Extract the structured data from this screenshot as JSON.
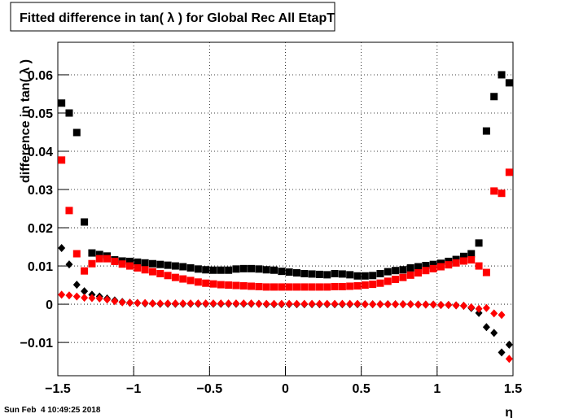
{
  "chart_data": {
    "type": "scatter",
    "title": "Fitted difference in tan( λ ) for Global Rec All EtapT",
    "y_label": "difference in tan( λ )",
    "x_label": "η",
    "timestamp": "Sun Feb  4 10:49:25 2018",
    "x": [
      -1.475,
      -1.425,
      -1.375,
      -1.325,
      -1.275,
      -1.225,
      -1.175,
      -1.125,
      -1.075,
      -1.025,
      -0.975,
      -0.925,
      -0.875,
      -0.825,
      -0.775,
      -0.725,
      -0.675,
      -0.625,
      -0.575,
      -0.525,
      -0.475,
      -0.425,
      -0.375,
      -0.325,
      -0.275,
      -0.225,
      -0.175,
      -0.125,
      -0.075,
      -0.025,
      0.025,
      0.075,
      0.125,
      0.175,
      0.225,
      0.275,
      0.325,
      0.375,
      0.425,
      0.475,
      0.525,
      0.575,
      0.625,
      0.675,
      0.725,
      0.775,
      0.825,
      0.875,
      0.925,
      0.975,
      1.025,
      1.075,
      1.125,
      1.175,
      1.225,
      1.275,
      1.325,
      1.375,
      1.425,
      1.475
    ],
    "series": [
      {
        "color": "#000000",
        "marker": "square",
        "values": [
          0.0526,
          0.05,
          0.0449,
          0.0215,
          0.0134,
          0.013,
          0.0126,
          0.0116,
          0.0113,
          0.0112,
          0.011,
          0.0108,
          0.0106,
          0.0104,
          0.0102,
          0.01,
          0.0098,
          0.0095,
          0.0092,
          0.009,
          0.0089,
          0.0089,
          0.0089,
          0.0092,
          0.0093,
          0.0093,
          0.0092,
          0.009,
          0.0089,
          0.0086,
          0.0084,
          0.0082,
          0.008,
          0.0079,
          0.0078,
          0.0077,
          0.008,
          0.0079,
          0.0077,
          0.0074,
          0.0074,
          0.0075,
          0.008,
          0.0085,
          0.0088,
          0.009,
          0.0095,
          0.0098,
          0.0101,
          0.0104,
          0.0107,
          0.0112,
          0.0117,
          0.0125,
          0.0132,
          0.016,
          0.0453,
          0.0543,
          0.06,
          0.0579
        ]
      },
      {
        "color": "#ff0000",
        "marker": "square",
        "values": [
          0.0377,
          0.0245,
          0.0132,
          0.0087,
          0.0106,
          0.0119,
          0.0119,
          0.0112,
          0.0105,
          0.01,
          0.0095,
          0.009,
          0.0085,
          0.008,
          0.0075,
          0.007,
          0.0066,
          0.0062,
          0.0058,
          0.0055,
          0.0053,
          0.0051,
          0.005,
          0.0049,
          0.0048,
          0.0047,
          0.0046,
          0.0045,
          0.0045,
          0.0045,
          0.0045,
          0.0045,
          0.0045,
          0.0045,
          0.0045,
          0.0045,
          0.0046,
          0.0046,
          0.0047,
          0.0048,
          0.005,
          0.0052,
          0.0055,
          0.006,
          0.0065,
          0.007,
          0.0076,
          0.0082,
          0.0088,
          0.0093,
          0.0098,
          0.0103,
          0.0108,
          0.0113,
          0.0116,
          0.01,
          0.0083,
          0.0296,
          0.029,
          0.0345
        ]
      },
      {
        "color": "#000000",
        "marker": "diamond",
        "values": [
          0.0147,
          0.0104,
          0.0051,
          0.0034,
          0.0025,
          0.002,
          0.0015,
          0.001,
          0.0006,
          0.0004,
          0.0003,
          0.0002,
          0.0002,
          0.0001,
          0.0001,
          0.0001,
          0.0001,
          0.0001,
          0.0001,
          0.0001,
          0.0001,
          0.0001,
          0.0001,
          0.0001,
          0.0001,
          0.0001,
          0.0001,
          0,
          0,
          0,
          0,
          0,
          0,
          0,
          0,
          0,
          0,
          0,
          0,
          0,
          0,
          0,
          0,
          0,
          0,
          0,
          0,
          -0.0001,
          -0.0001,
          -0.0001,
          -0.0002,
          -0.0002,
          -0.0003,
          -0.0004,
          -0.001,
          -0.0023,
          -0.006,
          -0.0075,
          -0.0126,
          -0.0106
        ]
      },
      {
        "color": "#ff0000",
        "marker": "diamond",
        "values": [
          0.0025,
          0.0023,
          0.002,
          0.0017,
          0.0016,
          0.0015,
          0.0012,
          0.0008,
          0.0005,
          0.0004,
          0.0003,
          0.0003,
          0.0002,
          0.0002,
          0.0002,
          0.0002,
          0.0002,
          0.0002,
          0.0002,
          0.0002,
          0.0002,
          0.0002,
          0.0002,
          0.0002,
          0.0002,
          0.0002,
          0.0001,
          0.0001,
          0.0001,
          0.0001,
          0.0001,
          0.0001,
          0.0001,
          0.0001,
          0.0001,
          0.0001,
          0.0001,
          0.0001,
          0.0001,
          0.0001,
          0,
          0,
          0,
          0,
          0,
          0,
          0,
          -0.0001,
          -0.0001,
          -0.0001,
          -0.0002,
          -0.0002,
          -0.0003,
          -0.0004,
          -0.0008,
          -0.0012,
          -0.001,
          -0.0024,
          -0.0028,
          -0.0143
        ]
      }
    ],
    "xlim": [
      -1.5,
      1.5
    ],
    "xticks": [
      {
        "value": -1.5,
        "label": "−1.5"
      },
      {
        "value": -1,
        "label": "−1"
      },
      {
        "value": -0.5,
        "label": "−0.5"
      },
      0,
      0.5,
      1,
      1.5
    ],
    "ylim": [
      -0.0187,
      0.0685
    ],
    "yticks": [
      {
        "value": -0.01,
        "label": "−0.01"
      },
      0,
      0.01,
      0.02,
      0.03,
      0.04,
      0.05,
      0.06
    ],
    "grid": true
  }
}
